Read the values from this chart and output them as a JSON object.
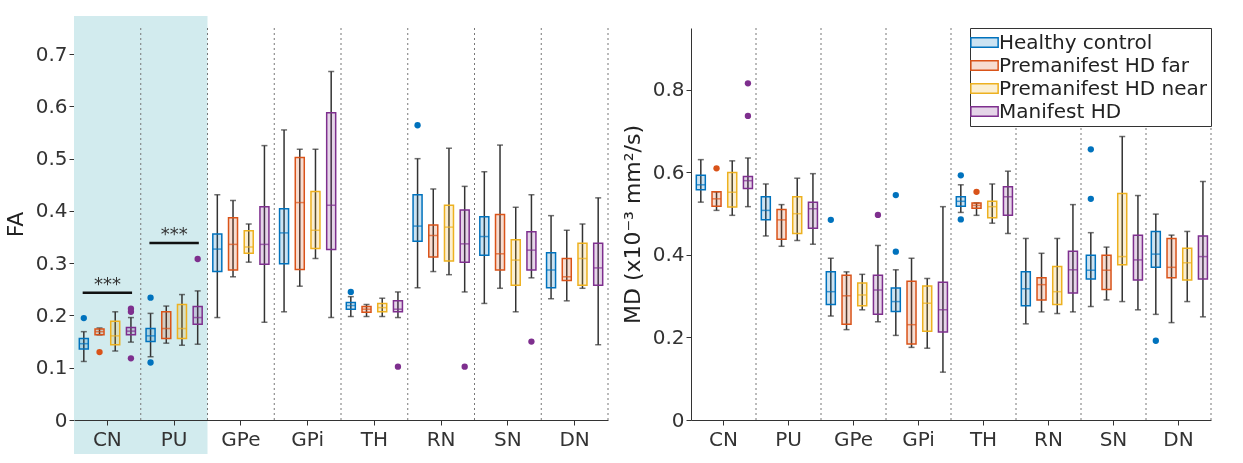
{
  "chart_data": [
    {
      "type": "box",
      "ylabel": "FA",
      "categories": [
        "CN",
        "PU",
        "GPe",
        "GPi",
        "TH",
        "RN",
        "SN",
        "DN"
      ],
      "ylim": [
        0,
        0.75
      ],
      "yticks": [
        0,
        0.1,
        0.2,
        0.3,
        0.4,
        0.5,
        0.6,
        0.7
      ],
      "grid": "x",
      "bands": [
        {
          "axis": "x",
          "from": "CN",
          "to": "PU",
          "color": "#d2ebee"
        }
      ],
      "annotations": [
        "***",
        "***"
      ],
      "series": [
        {
          "color": "#0072bd",
          "boxes": [
            {
              "low": 0.112,
              "q1": 0.136,
              "median": 0.146,
              "q3": 0.156,
              "high": 0.169,
              "outliers": [
                0.195
              ]
            },
            {
              "low": 0.121,
              "q1": 0.15,
              "median": 0.161,
              "q3": 0.175,
              "high": 0.204,
              "outliers": [
                0.234,
                0.11
              ]
            },
            {
              "low": 0.196,
              "q1": 0.284,
              "median": 0.327,
              "q3": 0.356,
              "high": 0.431
            },
            {
              "low": 0.207,
              "q1": 0.299,
              "median": 0.358,
              "q3": 0.404,
              "high": 0.555
            },
            {
              "low": 0.198,
              "q1": 0.212,
              "median": 0.219,
              "q3": 0.225,
              "high": 0.236,
              "outliers": [
                0.245
              ]
            },
            {
              "low": 0.253,
              "q1": 0.342,
              "median": 0.371,
              "q3": 0.431,
              "high": 0.5,
              "outliers": [
                0.564
              ]
            },
            {
              "low": 0.223,
              "q1": 0.315,
              "median": 0.351,
              "q3": 0.389,
              "high": 0.475
            },
            {
              "low": 0.232,
              "q1": 0.253,
              "median": 0.287,
              "q3": 0.32,
              "high": 0.391
            }
          ]
        },
        {
          "color": "#d95319",
          "boxes": [
            {
              "low": 0.163,
              "q1": 0.163,
              "median": 0.169,
              "q3": 0.174,
              "high": 0.176,
              "outliers": [
                0.13
              ]
            },
            {
              "low": 0.147,
              "q1": 0.156,
              "median": 0.175,
              "q3": 0.207,
              "high": 0.218
            },
            {
              "low": 0.274,
              "q1": 0.287,
              "median": 0.336,
              "q3": 0.387,
              "high": 0.42
            },
            {
              "low": 0.256,
              "q1": 0.288,
              "median": 0.416,
              "q3": 0.502,
              "high": 0.518
            },
            {
              "low": 0.198,
              "q1": 0.206,
              "median": 0.212,
              "q3": 0.217,
              "high": 0.221
            },
            {
              "low": 0.284,
              "q1": 0.312,
              "median": 0.353,
              "q3": 0.373,
              "high": 0.442
            },
            {
              "low": 0.252,
              "q1": 0.287,
              "median": 0.318,
              "q3": 0.393,
              "high": 0.526
            },
            {
              "low": 0.228,
              "q1": 0.267,
              "median": 0.274,
              "q3": 0.309,
              "high": 0.363
            }
          ]
        },
        {
          "color": "#edb120",
          "boxes": [
            {
              "low": 0.132,
              "q1": 0.144,
              "median": 0.161,
              "q3": 0.189,
              "high": 0.207
            },
            {
              "low": 0.143,
              "q1": 0.156,
              "median": 0.175,
              "q3": 0.221,
              "high": 0.24
            },
            {
              "low": 0.302,
              "q1": 0.319,
              "median": 0.331,
              "q3": 0.362,
              "high": 0.375
            },
            {
              "low": 0.309,
              "q1": 0.328,
              "median": 0.363,
              "q3": 0.437,
              "high": 0.518
            },
            {
              "low": 0.198,
              "q1": 0.207,
              "median": 0.215,
              "q3": 0.223,
              "high": 0.233
            },
            {
              "low": 0.278,
              "q1": 0.304,
              "median": 0.369,
              "q3": 0.411,
              "high": 0.52
            },
            {
              "low": 0.207,
              "q1": 0.258,
              "median": 0.306,
              "q3": 0.345,
              "high": 0.407
            },
            {
              "low": 0.252,
              "q1": 0.258,
              "median": 0.309,
              "q3": 0.338,
              "high": 0.375
            }
          ]
        },
        {
          "color": "#7e2f8e",
          "boxes": [
            {
              "low": 0.149,
              "q1": 0.163,
              "median": 0.17,
              "q3": 0.177,
              "high": 0.196,
              "outliers": [
                0.213,
                0.207,
                0.118
              ]
            },
            {
              "low": 0.145,
              "q1": 0.183,
              "median": 0.196,
              "q3": 0.217,
              "high": 0.247,
              "outliers": [
                0.308
              ]
            },
            {
              "low": 0.187,
              "q1": 0.298,
              "median": 0.336,
              "q3": 0.408,
              "high": 0.525
            },
            {
              "low": 0.196,
              "q1": 0.326,
              "median": 0.411,
              "q3": 0.588,
              "high": 0.667
            },
            {
              "low": 0.196,
              "q1": 0.207,
              "median": 0.212,
              "q3": 0.228,
              "high": 0.245,
              "outliers": [
                0.102
              ]
            },
            {
              "low": 0.245,
              "q1": 0.302,
              "median": 0.337,
              "q3": 0.402,
              "high": 0.447,
              "outliers": [
                0.102
              ]
            },
            {
              "low": 0.272,
              "q1": 0.287,
              "median": 0.325,
              "q3": 0.36,
              "high": 0.431,
              "outliers": [
                0.15
              ]
            },
            {
              "low": 0.144,
              "q1": 0.258,
              "median": 0.291,
              "q3": 0.338,
              "high": 0.425
            }
          ]
        }
      ]
    },
    {
      "type": "box",
      "ylabel": "MD (x10⁻³ mm²/s)",
      "categories": [
        "CN",
        "PU",
        "GPe",
        "GPi",
        "TH",
        "RN",
        "SN",
        "DN"
      ],
      "ylim": [
        0,
        0.95
      ],
      "yticks": [
        0,
        0.2,
        0.4,
        0.6,
        0.8
      ],
      "grid": "x",
      "legend": "top right",
      "series": [
        {
          "name": "Healthy control",
          "color": "#0072bd",
          "boxes": [
            {
              "low": 0.528,
              "q1": 0.558,
              "median": 0.57,
              "q3": 0.593,
              "high": 0.631
            },
            {
              "low": 0.446,
              "q1": 0.485,
              "median": 0.508,
              "q3": 0.541,
              "high": 0.572
            },
            {
              "low": 0.252,
              "q1": 0.28,
              "median": 0.311,
              "q3": 0.359,
              "high": 0.392,
              "outliers": [
                0.485
              ]
            },
            {
              "low": 0.205,
              "q1": 0.263,
              "median": 0.287,
              "q3": 0.32,
              "high": 0.364,
              "outliers": [
                0.545,
                0.408
              ]
            },
            {
              "low": 0.503,
              "q1": 0.518,
              "median": 0.53,
              "q3": 0.541,
              "high": 0.57,
              "outliers": [
                0.593,
                0.486
              ]
            },
            {
              "low": 0.233,
              "q1": 0.277,
              "median": 0.318,
              "q3": 0.359,
              "high": 0.44
            },
            {
              "low": 0.275,
              "q1": 0.342,
              "median": 0.363,
              "q3": 0.399,
              "high": 0.454,
              "outliers": [
                0.656,
                0.536
              ]
            },
            {
              "low": 0.256,
              "q1": 0.37,
              "median": 0.402,
              "q3": 0.457,
              "high": 0.499,
              "outliers": [
                0.192
              ]
            }
          ]
        },
        {
          "name": "Premanifest HD far",
          "color": "#d95319",
          "boxes": [
            {
              "low": 0.508,
              "q1": 0.518,
              "median": 0.536,
              "q3": 0.553,
              "high": 0.553,
              "outliers": [
                0.61
              ]
            },
            {
              "low": 0.421,
              "q1": 0.438,
              "median": 0.485,
              "q3": 0.51,
              "high": 0.522
            },
            {
              "low": 0.219,
              "q1": 0.232,
              "median": 0.301,
              "q3": 0.351,
              "high": 0.359
            },
            {
              "low": 0.176,
              "q1": 0.184,
              "median": 0.231,
              "q3": 0.336,
              "high": 0.392
            },
            {
              "low": 0.496,
              "q1": 0.513,
              "median": 0.52,
              "q3": 0.526,
              "high": 0.526,
              "outliers": [
                0.553
              ]
            },
            {
              "low": 0.262,
              "q1": 0.291,
              "median": 0.328,
              "q3": 0.345,
              "high": 0.404
            },
            {
              "low": 0.291,
              "q1": 0.316,
              "median": 0.363,
              "q3": 0.399,
              "high": 0.419
            },
            {
              "low": 0.236,
              "q1": 0.345,
              "median": 0.37,
              "q3": 0.44,
              "high": 0.448
            }
          ]
        },
        {
          "name": "Premanifest HD near",
          "color": "#edb120",
          "boxes": [
            {
              "low": 0.496,
              "q1": 0.516,
              "median": 0.552,
              "q3": 0.6,
              "high": 0.628
            },
            {
              "low": 0.435,
              "q1": 0.452,
              "median": 0.5,
              "q3": 0.541,
              "high": 0.586
            },
            {
              "low": 0.267,
              "q1": 0.277,
              "median": 0.303,
              "q3": 0.332,
              "high": 0.353
            },
            {
              "low": 0.174,
              "q1": 0.215,
              "median": 0.283,
              "q3": 0.325,
              "high": 0.343
            },
            {
              "low": 0.477,
              "q1": 0.49,
              "median": 0.517,
              "q3": 0.53,
              "high": 0.572
            },
            {
              "low": 0.258,
              "q1": 0.28,
              "median": 0.311,
              "q3": 0.372,
              "high": 0.44
            },
            {
              "low": 0.287,
              "q1": 0.376,
              "median": 0.396,
              "q3": 0.549,
              "high": 0.687
            },
            {
              "low": 0.287,
              "q1": 0.339,
              "median": 0.381,
              "q3": 0.416,
              "high": 0.457
            }
          ]
        },
        {
          "name": "Manifest HD",
          "color": "#7e2f8e",
          "boxes": [
            {
              "low": 0.517,
              "q1": 0.561,
              "median": 0.58,
              "q3": 0.59,
              "high": 0.635,
              "outliers": [
                0.816,
                0.737
              ]
            },
            {
              "low": 0.426,
              "q1": 0.465,
              "median": 0.512,
              "q3": 0.528,
              "high": 0.597
            },
            {
              "low": 0.238,
              "q1": 0.256,
              "median": 0.315,
              "q3": 0.351,
              "high": 0.423,
              "outliers": [
                0.497
              ]
            },
            {
              "low": 0.116,
              "q1": 0.213,
              "median": 0.267,
              "q3": 0.334,
              "high": 0.517
            },
            {
              "low": 0.452,
              "q1": 0.496,
              "median": 0.541,
              "q3": 0.565,
              "high": 0.603
            },
            {
              "low": 0.262,
              "q1": 0.308,
              "median": 0.364,
              "q3": 0.409,
              "high": 0.522
            },
            {
              "low": 0.267,
              "q1": 0.339,
              "median": 0.388,
              "q3": 0.448,
              "high": 0.544
            },
            {
              "low": 0.25,
              "q1": 0.342,
              "median": 0.396,
              "q3": 0.446,
              "high": 0.578
            }
          ]
        }
      ]
    }
  ]
}
